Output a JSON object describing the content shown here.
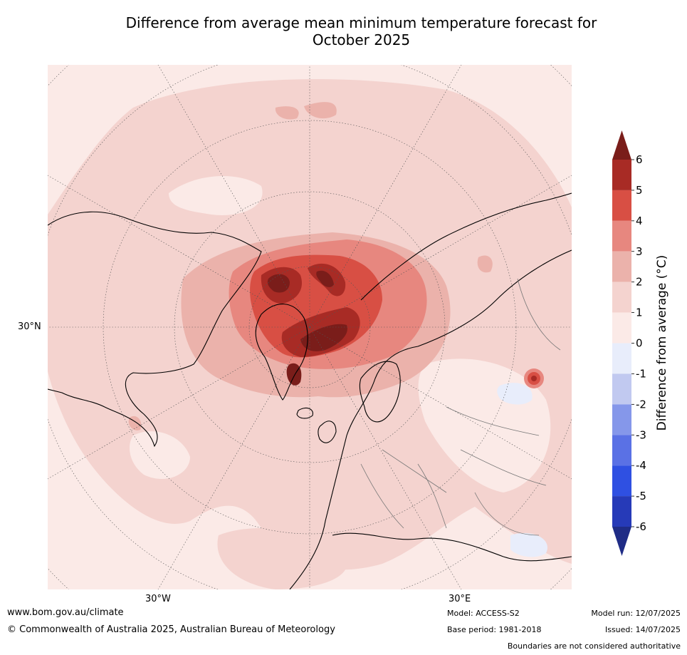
{
  "title": {
    "line1": "Difference from average mean minimum temperature forecast for",
    "line2": "October 2025"
  },
  "map": {
    "projection": "north polar stereographic",
    "labels": {
      "lat_30n": "30°N",
      "lon_30w": "30°W",
      "lon_30e": "30°E"
    },
    "colors": {
      "anom_0_1": "#fbeae7",
      "anom_1_2": "#f4d3cf",
      "anom_2_3": "#ebb2ab",
      "anom_3_4": "#e7877f",
      "anom_4_5": "#d84f44",
      "anom_5_6": "#a82b25",
      "anom_gt_6": "#7a1d1a",
      "anom_m1_0": "#e8edfb"
    }
  },
  "colorbar": {
    "label": "Difference from average (°C)",
    "ticks": [
      "6",
      "5",
      "4",
      "3",
      "2",
      "1",
      "0",
      "-1",
      "-2",
      "-3",
      "-4",
      "-5",
      "-6"
    ],
    "colors": {
      "top_arrow": "#7a1d1a",
      "bands": [
        "#a82b25",
        "#d84f44",
        "#e7877f",
        "#ebb2ab",
        "#f4d3cf",
        "#fbeae7",
        "#e8edfb",
        "#c1c9f0",
        "#8597ea",
        "#5a71e5",
        "#2f50e2",
        "#263ab8"
      ],
      "bottom_arrow": "#1f2c86"
    }
  },
  "footer": {
    "website": "www.bom.gov.au/climate",
    "copyright": "© Commonwealth of Australia 2025, Australian Bureau of Meteorology",
    "model": "Model: ACCESS-S2",
    "base_period": "Base period: 1981-2018",
    "model_run": "Model run: 12/07/2025",
    "issued": "Issued: 14/07/2025",
    "disclaimer": "Boundaries are not considered authoritative"
  }
}
